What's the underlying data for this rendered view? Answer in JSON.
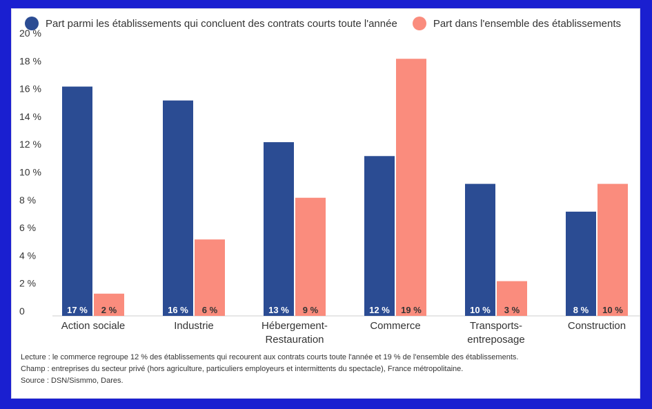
{
  "chart_data": {
    "type": "bar",
    "categories": [
      [
        "Action sociale"
      ],
      [
        "Industrie"
      ],
      [
        "Hébergement-",
        "Restauration"
      ],
      [
        "Commerce"
      ],
      [
        "Transports-",
        "entreposage"
      ],
      [
        "Construction"
      ]
    ],
    "series": [
      {
        "name": "Part parmi les établissements qui concluent des contrats courts toute l'année",
        "color": "#2b4c93",
        "values": [
          16.5,
          15.5,
          12.5,
          11.5,
          9.5,
          7.5
        ],
        "labels": [
          "17 %",
          "16 %",
          "13 %",
          "12 %",
          "10 %",
          "8 %"
        ]
      },
      {
        "name": "Part dans l'ensemble des établissements",
        "color": "#fa8c7d",
        "values": [
          1.6,
          5.5,
          8.5,
          18.5,
          2.5,
          9.5
        ],
        "labels": [
          "2 %",
          "6 %",
          "9 %",
          "19 %",
          "3 %",
          "10 %"
        ]
      }
    ],
    "ylim": [
      0,
      20
    ],
    "yticks": [
      0,
      2,
      4,
      6,
      8,
      10,
      12,
      14,
      16,
      18,
      20
    ],
    "ytick_labels": [
      "0",
      "2 %",
      "4 %",
      "6 %",
      "8 %",
      "10 %",
      "12 %",
      "14 %",
      "16 %",
      "18 %",
      "20 %"
    ],
    "title": "",
    "xlabel": "",
    "ylabel": "",
    "grid": false,
    "legend": "top-left"
  },
  "notes": {
    "lecture": "Lecture : le commerce regroupe 12 % des établissements qui recourent aux contrats courts toute l'année et 19 % de l'ensemble des établissements.",
    "champ": "Champ : entreprises du secteur privé (hors agriculture, particuliers employeurs et intermittents du spectacle), France métropolitaine.",
    "source": "Source : DSN/Sismmo, Dares."
  }
}
